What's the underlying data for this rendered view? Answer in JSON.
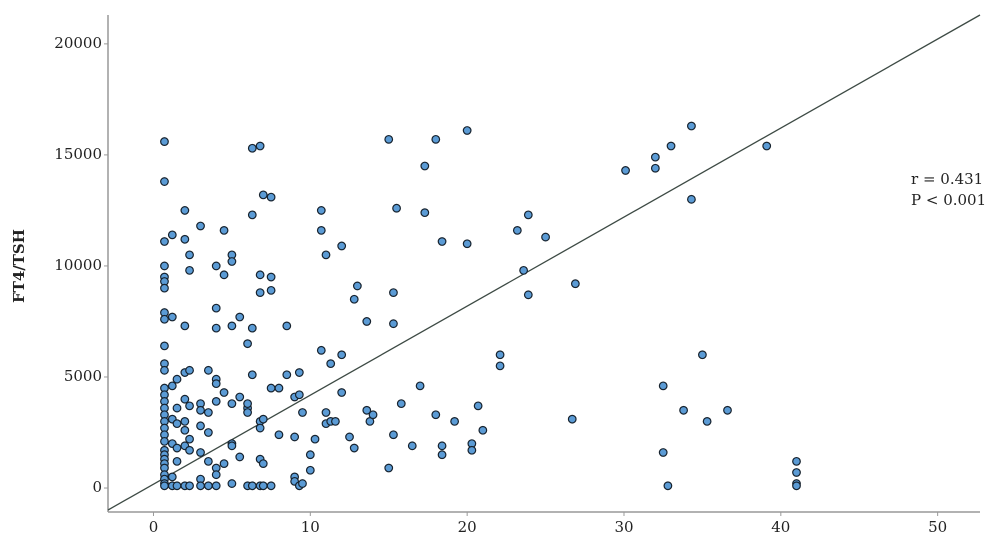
{
  "chart_data": {
    "type": "scatter",
    "ylabel": "FT4/TSH",
    "annotations": [
      "r = 0.431",
      "P < 0.001"
    ],
    "xlim": [
      -2.9,
      52.7
    ],
    "ylim": [
      -1080,
      21300
    ],
    "xticks": [
      0,
      10,
      20,
      30,
      40,
      50
    ],
    "yticks": [
      0,
      5000,
      10000,
      15000,
      20000
    ],
    "grid": false,
    "fit_line": {
      "x": [
        -2.9,
        52.7
      ],
      "y": [
        -990,
        21300
      ],
      "color": "#3d4a44"
    },
    "series": [
      {
        "color": "#5b9bd5",
        "x": [
          0.7,
          0.7,
          0.7,
          0.7,
          0.7,
          0.7,
          0.7,
          0.7,
          0.7,
          0.7,
          0.7,
          0.7,
          0.7,
          0.7,
          0.7,
          0.7,
          0.7,
          0.7,
          0.7,
          0.7,
          0.7,
          0.7,
          0.7,
          0.7,
          0.7,
          0.7,
          0.7,
          0.7,
          0.7,
          0.7,
          1.2,
          1.2,
          1.2,
          1.2,
          1.2,
          1.2,
          1.2,
          1.5,
          1.5,
          1.5,
          1.5,
          1.5,
          1.5,
          2,
          2,
          2,
          2,
          2,
          2,
          2,
          2,
          2,
          2.3,
          2.3,
          2.3,
          2.3,
          2.3,
          2.3,
          2.3,
          3,
          3,
          3,
          3,
          3,
          3,
          3,
          3.5,
          3.5,
          3.5,
          3.5,
          3.5,
          4,
          4,
          4,
          4,
          4,
          4,
          4,
          4,
          4,
          4.5,
          4.5,
          4.5,
          4.5,
          5,
          5,
          5,
          5,
          5,
          5,
          5,
          5.5,
          5.5,
          5.5,
          6,
          6,
          6,
          6,
          6,
          6.3,
          6.3,
          6.3,
          6.3,
          6.3,
          6.8,
          6.8,
          6.8,
          6.8,
          6.8,
          6.8,
          6.8,
          7,
          7,
          7,
          7,
          7.5,
          7.5,
          7.5,
          7.5,
          7.5,
          8,
          8,
          8.5,
          8.5,
          9,
          9,
          9,
          9,
          9.3,
          9.3,
          9.3,
          9.5,
          9.5,
          10,
          10,
          10.3,
          10.7,
          10.7,
          10.7,
          11,
          11,
          11,
          11.3,
          11.3,
          11.6,
          12,
          12,
          12,
          12.5,
          12.8,
          12.8,
          13,
          13.6,
          13.6,
          13.8,
          14,
          15,
          15,
          15.3,
          15.3,
          15.3,
          15.5,
          15.8,
          16.5,
          17,
          17.3,
          17.3,
          18,
          18,
          18.4,
          18.4,
          18.4,
          19.2,
          20,
          20,
          20.3,
          20.3,
          20.7,
          21,
          22.1,
          22.1,
          23.2,
          23.6,
          23.9,
          23.9,
          25,
          26.7,
          26.9,
          30.1,
          32,
          32,
          32.5,
          32.5,
          32.8,
          33,
          33.8,
          34.3,
          34.3,
          35,
          35.3,
          36.6,
          39.1,
          41,
          41,
          41,
          41
        ],
        "values": [
          15600,
          13800,
          11100,
          10000,
          9500,
          9300,
          9000,
          7900,
          7600,
          6400,
          5600,
          5300,
          4500,
          4200,
          3900,
          3600,
          3300,
          3000,
          2700,
          2400,
          2100,
          1700,
          1500,
          1300,
          1100,
          900,
          600,
          400,
          200,
          100,
          11400,
          7700,
          4600,
          3100,
          2000,
          500,
          100,
          4900,
          3600,
          2900,
          1800,
          1200,
          100,
          12500,
          11200,
          7300,
          5200,
          4000,
          3000,
          2600,
          1900,
          100,
          10500,
          9800,
          5300,
          3700,
          2200,
          1700,
          100,
          11800,
          3800,
          3500,
          2800,
          1600,
          400,
          100,
          5300,
          3400,
          2500,
          1200,
          100,
          10000,
          8100,
          7200,
          4900,
          4700,
          3900,
          900,
          600,
          100,
          11600,
          9600,
          4300,
          1100,
          10500,
          10200,
          7300,
          3800,
          2000,
          1900,
          200,
          7700,
          4100,
          1400,
          6500,
          3600,
          3400,
          3800,
          100,
          15300,
          12300,
          7200,
          5100,
          100,
          15400,
          9600,
          8800,
          3000,
          2700,
          1300,
          100,
          13200,
          3100,
          1100,
          100,
          13100,
          9500,
          8900,
          4500,
          100,
          4500,
          2400,
          7300,
          5100,
          4100,
          2300,
          500,
          300,
          5200,
          4200,
          100,
          3400,
          200,
          1500,
          800,
          2200,
          11600,
          12500,
          6200,
          10500,
          3400,
          2900,
          5600,
          3000,
          3000,
          10900,
          6000,
          4300,
          2300,
          8500,
          1800,
          9100,
          7500,
          3500,
          3000,
          3300,
          15700,
          900,
          8800,
          7400,
          2400,
          12600,
          3800,
          1900,
          4600,
          14500,
          12400,
          15700,
          3300,
          11100,
          1900,
          1500,
          3000,
          16100,
          11000,
          2000,
          1700,
          3700,
          2600,
          5500,
          6000,
          11600,
          9800,
          12300,
          8700,
          11300,
          3100,
          9200,
          14300,
          14400,
          14900,
          4600,
          1600,
          100,
          15400,
          3500,
          16300,
          13000,
          6000,
          3000,
          3500,
          15400,
          1200,
          700,
          200,
          100
        ]
      }
    ]
  }
}
